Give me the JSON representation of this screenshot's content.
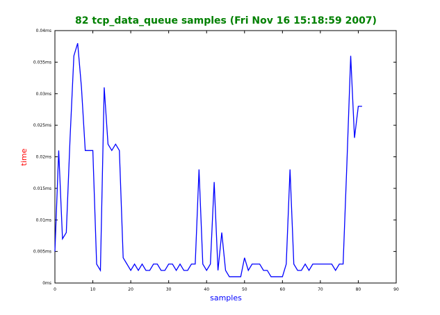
{
  "chart_data": {
    "type": "line",
    "title": "82 tcp_data_queue samples (Fri Nov 16 15:18:59 2007)",
    "xlabel": "samples",
    "ylabel": "time",
    "xlim": [
      0,
      90
    ],
    "ylim": [
      0,
      0.04
    ],
    "x_ticks": [
      0,
      10,
      20,
      30,
      40,
      50,
      60,
      70,
      80,
      90
    ],
    "y_ticks": [
      0,
      0.005,
      0.01,
      0.015,
      0.02,
      0.025,
      0.03,
      0.035,
      0.04
    ],
    "x_tick_labels": [
      "0",
      "10",
      "20",
      "30",
      "40",
      "50",
      "60",
      "70",
      "80",
      "90"
    ],
    "y_tick_labels": [
      "0ms",
      "0.005ms",
      "0.01ms",
      "0.015ms",
      "0.02ms",
      "0.025ms",
      "0.03ms",
      "0.035ms",
      "0.04ms"
    ],
    "grid": false,
    "colors": {
      "title": "#008000",
      "xlabel": "#0000ff",
      "ylabel": "#ff0000",
      "series": "#0000ff"
    },
    "series": [
      {
        "name": "",
        "x": [
          0,
          1,
          2,
          3,
          4,
          5,
          6,
          7,
          8,
          9,
          10,
          11,
          12,
          13,
          14,
          15,
          16,
          17,
          18,
          19,
          20,
          21,
          22,
          23,
          24,
          25,
          26,
          27,
          28,
          29,
          30,
          31,
          32,
          33,
          34,
          35,
          36,
          37,
          38,
          39,
          40,
          41,
          42,
          43,
          44,
          45,
          46,
          47,
          48,
          49,
          50,
          51,
          52,
          53,
          54,
          55,
          56,
          57,
          58,
          59,
          60,
          61,
          62,
          63,
          64,
          65,
          66,
          67,
          68,
          69,
          70,
          71,
          72,
          73,
          74,
          75,
          76,
          77,
          78,
          79,
          80,
          81
        ],
        "y": [
          0.005,
          0.021,
          0.007,
          0.008,
          0.023,
          0.036,
          0.038,
          0.031,
          0.021,
          0.021,
          0.021,
          0.003,
          0.002,
          0.031,
          0.022,
          0.021,
          0.022,
          0.021,
          0.004,
          0.003,
          0.002,
          0.003,
          0.002,
          0.003,
          0.002,
          0.002,
          0.003,
          0.003,
          0.002,
          0.002,
          0.003,
          0.003,
          0.002,
          0.003,
          0.002,
          0.002,
          0.003,
          0.003,
          0.018,
          0.003,
          0.002,
          0.003,
          0.016,
          0.002,
          0.008,
          0.002,
          0.001,
          0.001,
          0.001,
          0.001,
          0.004,
          0.002,
          0.003,
          0.003,
          0.003,
          0.002,
          0.002,
          0.001,
          0.001,
          0.001,
          0.001,
          0.003,
          0.018,
          0.003,
          0.002,
          0.002,
          0.003,
          0.002,
          0.003,
          0.003,
          0.003,
          0.003,
          0.003,
          0.003,
          0.002,
          0.003,
          0.003,
          0.019,
          0.036,
          0.023,
          0.028,
          0.028
        ]
      }
    ]
  }
}
